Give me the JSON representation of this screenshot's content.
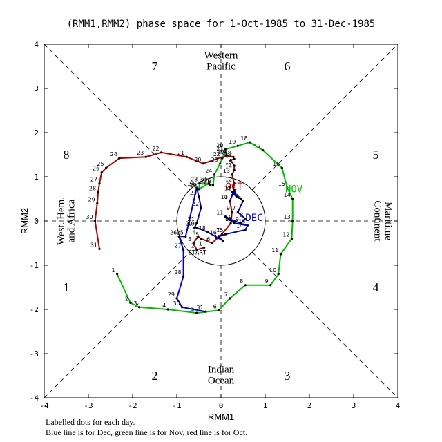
{
  "chart_data": {
    "type": "line",
    "title": "(RMM1,RMM2) phase space for  1-Oct-1985 to 31-Dec-1985",
    "xlabel": "RMM1",
    "ylabel": "RMM2",
    "xlim": [
      -4,
      4
    ],
    "ylim": [
      -4,
      4
    ],
    "xticks": [
      -4,
      -3,
      -2,
      -1,
      0,
      1,
      2,
      3,
      4
    ],
    "yticks": [
      -4,
      -3,
      -2,
      -1,
      0,
      1,
      2,
      3,
      4
    ],
    "unit_circle_radius": 1,
    "phases": [
      "1",
      "2",
      "3",
      "4",
      "5",
      "6",
      "7",
      "8"
    ],
    "regions": {
      "top": [
        "Western",
        "Pacific"
      ],
      "bottom": [
        "Indian",
        "Ocean"
      ],
      "left": [
        "West. Hem.",
        "and Africa"
      ],
      "right": [
        "Maritime",
        "Continent"
      ]
    },
    "start_label": "START",
    "series": [
      {
        "name": "OCT",
        "color": "#b00000",
        "labels": [
          "1",
          "2",
          "3",
          "4",
          "5",
          "6",
          "7",
          "8",
          "9",
          "10",
          "11",
          "12",
          "13",
          "14",
          "15",
          "16",
          "17",
          "18",
          "19",
          "20",
          "21",
          "22",
          "23",
          "24",
          "25",
          "26",
          "27",
          "28",
          "29",
          "30",
          "31"
        ],
        "x": [
          -0.38,
          -0.55,
          -0.62,
          -0.52,
          -0.45,
          -0.2,
          0.02,
          0.22,
          0.25,
          0.2,
          0.28,
          0.3,
          0.25,
          0.3,
          0.3,
          0.22,
          0.3,
          0.28,
          0.12,
          -0.4,
          -0.78,
          -1.35,
          -1.7,
          -2.3,
          -2.6,
          -2.7,
          -2.75,
          -2.78,
          -2.8,
          -2.85,
          -2.75
        ],
        "y": [
          -0.6,
          -0.65,
          -0.5,
          -0.35,
          -0.4,
          -0.5,
          -0.3,
          -0.05,
          0.2,
          0.45,
          0.65,
          0.85,
          1.05,
          1.15,
          1.25,
          1.38,
          1.4,
          1.45,
          1.48,
          1.3,
          1.45,
          1.55,
          1.45,
          1.42,
          1.2,
          1.1,
          0.85,
          0.65,
          0.4,
          0.0,
          -0.63
        ]
      },
      {
        "name": "NOV",
        "color": "#00bb00",
        "labels": [
          "1",
          "2",
          "3",
          "4",
          "5",
          "6",
          "7",
          "8",
          "9",
          "10",
          "11",
          "12",
          "13",
          "14",
          "15",
          "16",
          "17",
          "18",
          "19",
          "20",
          "21",
          "22",
          "23",
          "24",
          "25",
          "26",
          "27",
          "28",
          "29",
          "30"
        ],
        "x": [
          -2.35,
          -2.05,
          -1.85,
          -1.2,
          -0.55,
          -0.05,
          0.2,
          0.55,
          1.12,
          1.3,
          1.35,
          1.6,
          1.62,
          1.62,
          1.5,
          1.38,
          0.95,
          0.65,
          0.38,
          0.1,
          0.1,
          0.03,
          -0.02,
          -0.15,
          -0.18,
          -0.18,
          -0.25,
          -0.48,
          -0.5,
          -0.28
        ],
        "y": [
          -1.2,
          -1.85,
          -1.95,
          -2.0,
          -2.08,
          -2.02,
          -1.75,
          -1.45,
          -1.45,
          -1.2,
          -0.75,
          -0.4,
          0.0,
          0.5,
          0.75,
          1.2,
          1.6,
          1.78,
          1.7,
          1.62,
          1.55,
          1.42,
          1.3,
          1.05,
          0.8,
          0.82,
          0.82,
          0.85,
          0.72,
          0.85
        ]
      },
      {
        "name": "DEC",
        "color": "#0000cc",
        "labels": [
          "1",
          "2",
          "3",
          "4",
          "5",
          "6",
          "7",
          "8",
          "9",
          "10",
          "11",
          "12",
          "13",
          "14",
          "15",
          "16",
          "17",
          "18",
          "19",
          "20",
          "21",
          "22",
          "23",
          "24",
          "25",
          "26",
          "27",
          "28",
          "29",
          "30",
          "31"
        ],
        "x": [
          0.2,
          0.3,
          0.35,
          0.25,
          0.45,
          0.5,
          0.38,
          0.55,
          0.45,
          0.3,
          0.1,
          0.3,
          0.6,
          0.55,
          0.1,
          -0.05,
          0.05,
          -0.3,
          -0.55,
          -0.6,
          -0.55,
          -0.45,
          -0.5,
          -0.55,
          -0.8,
          -0.95,
          -0.85,
          -0.85,
          -1.0,
          -0.88,
          -0.35
        ],
        "y": [
          0.45,
          0.7,
          0.55,
          0.65,
          0.5,
          0.45,
          0.2,
          0.05,
          -0.05,
          0.0,
          0.1,
          -0.05,
          -0.1,
          -0.2,
          -0.3,
          -0.35,
          -0.45,
          -0.25,
          -0.15,
          -0.15,
          -0.05,
          0.3,
          0.55,
          0.75,
          -0.35,
          -0.35,
          -0.65,
          -1.25,
          -1.75,
          -1.95,
          -2.05
        ]
      }
    ],
    "footnote": [
      "Labelled dots for each day.",
      "Blue line is for Dec, green line is for Nov, red line is for Oct."
    ]
  }
}
